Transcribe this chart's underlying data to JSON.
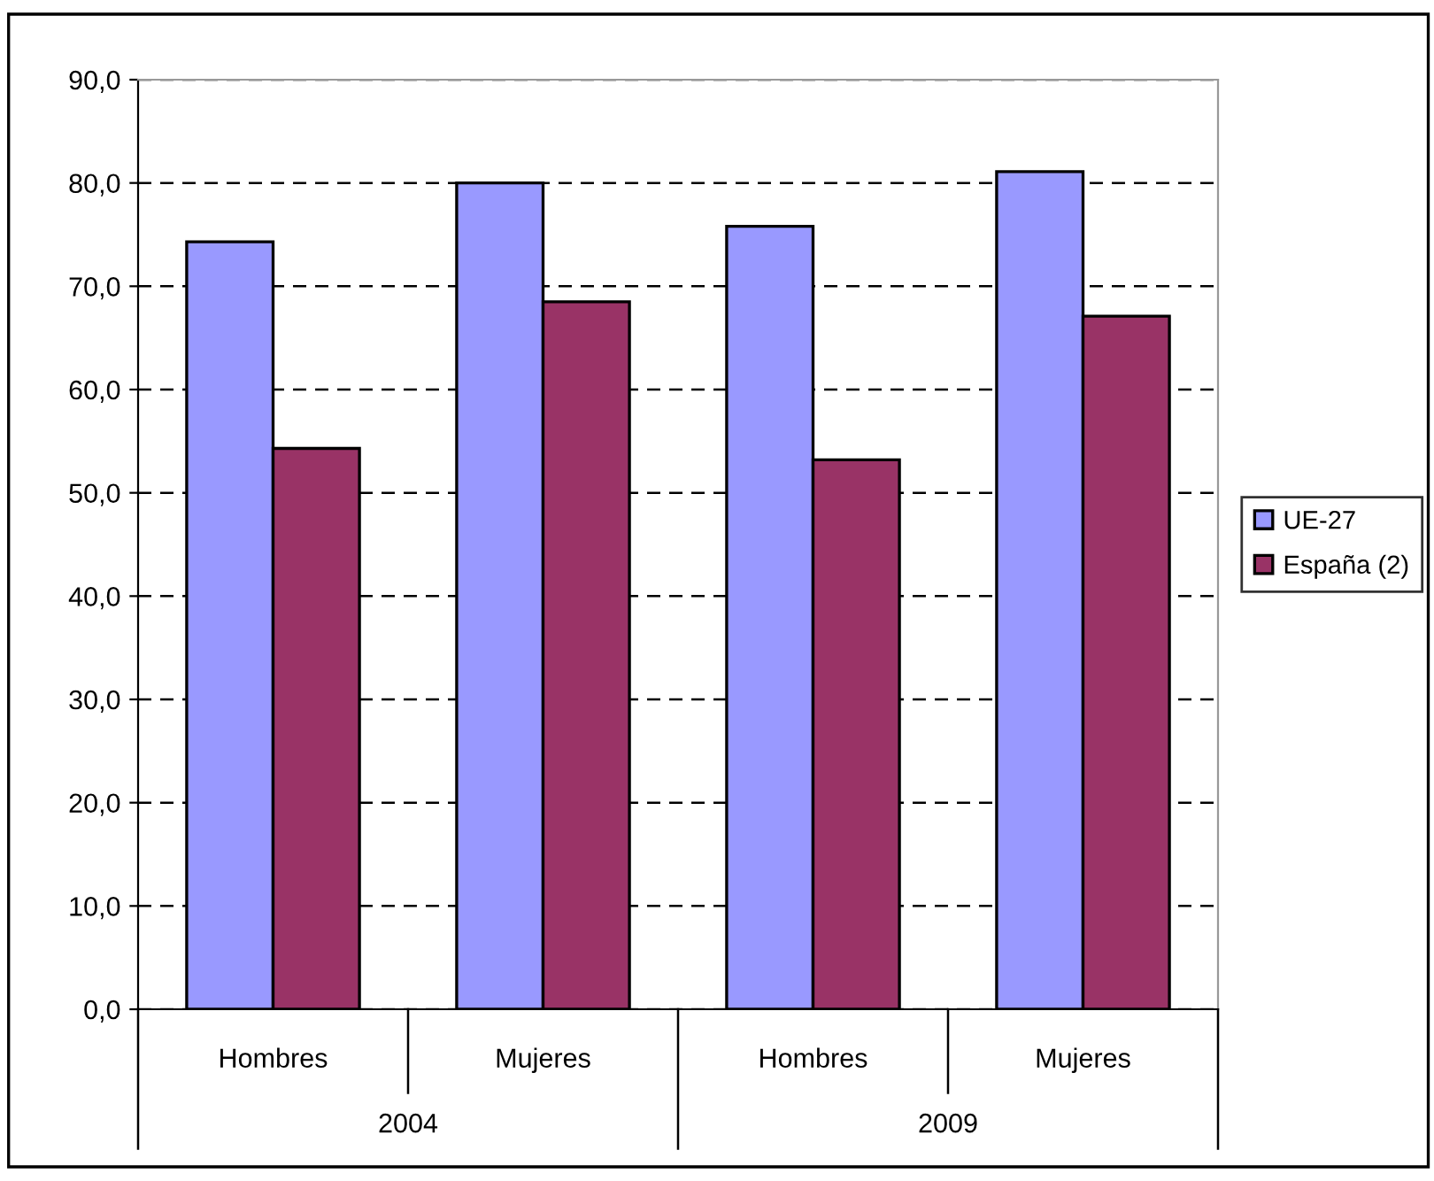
{
  "chart_data": {
    "type": "bar",
    "categories": [
      "Hombres",
      "Mujeres",
      "Hombres",
      "Mujeres"
    ],
    "series": [
      {
        "name": "UE-27",
        "color": "#9999ff",
        "values": [
          74.3,
          80.0,
          75.8,
          81.1
        ]
      },
      {
        "name": "España (2)",
        "color": "#993366",
        "values": [
          54.3,
          68.5,
          53.2,
          67.1
        ]
      }
    ],
    "annotations": [
      "2004",
      "2009"
    ],
    "ylim": [
      0,
      90
    ],
    "yticks": [
      {
        "value": 0,
        "label": "0,0"
      },
      {
        "value": 10,
        "label": "10,0"
      },
      {
        "value": 20,
        "label": "20,0"
      },
      {
        "value": 30,
        "label": "30,0"
      },
      {
        "value": 40,
        "label": "40,0"
      },
      {
        "value": 50,
        "label": "50,0"
      },
      {
        "value": 60,
        "label": "60,0"
      },
      {
        "value": 70,
        "label": "70,0"
      },
      {
        "value": 80,
        "label": "80,0"
      },
      {
        "value": 90,
        "label": "90,0"
      }
    ],
    "grid": "y",
    "legend": "right"
  }
}
